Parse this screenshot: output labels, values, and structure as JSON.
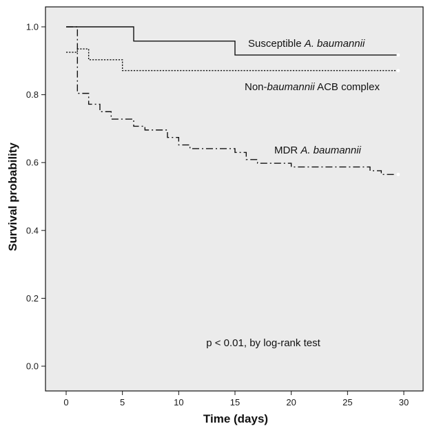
{
  "chart_data": {
    "type": "line",
    "step": true,
    "xlabel": "Time (days)",
    "ylabel": "Survival probability",
    "xlim": [
      0,
      30
    ],
    "ylim": [
      0,
      1
    ],
    "xticks": [
      0,
      5,
      10,
      15,
      20,
      25,
      30
    ],
    "yticks": [
      0.0,
      0.2,
      0.4,
      0.6,
      0.8,
      1.0
    ],
    "xtick_labels": [
      "0",
      "5",
      "10",
      "15",
      "20",
      "25",
      "30"
    ],
    "ytick_labels": [
      "0.0",
      "0.2",
      "0.4",
      "0.6",
      "0.8",
      "1.0"
    ],
    "grid": false,
    "background": "#ebebeb",
    "annotation": "p < 0.01, by log-rank test",
    "series": [
      {
        "label_parts": [
          {
            "text": "Susceptible ",
            "italic": false
          },
          {
            "text": "A. baumannii",
            "italic": true
          }
        ],
        "style": "solid",
        "color": "#111111",
        "x": [
          0,
          6,
          15,
          29.5
        ],
        "y": [
          1.0,
          0.958,
          0.917,
          0.917
        ]
      },
      {
        "label_parts": [
          {
            "text": "Non-",
            "italic": false
          },
          {
            "text": "baumannii",
            "italic": true
          },
          {
            "text": " ACB complex",
            "italic": false
          }
        ],
        "style": "dotted",
        "color": "#111111",
        "x": [
          0,
          1,
          2,
          5,
          29.5
        ],
        "y": [
          0.925,
          0.935,
          0.903,
          0.871,
          0.871
        ]
      },
      {
        "label_parts": [
          {
            "text": "MDR ",
            "italic": false
          },
          {
            "text": "A. baumannii",
            "italic": true
          }
        ],
        "style": "dashdot",
        "color": "#111111",
        "x": [
          0,
          1,
          2,
          3,
          4,
          6,
          7,
          9,
          10,
          11,
          15,
          16,
          17,
          20,
          27,
          28,
          29.5
        ],
        "y": [
          1.0,
          0.804,
          0.772,
          0.75,
          0.728,
          0.707,
          0.696,
          0.674,
          0.652,
          0.641,
          0.63,
          0.609,
          0.598,
          0.587,
          0.576,
          0.565,
          0.565
        ]
      }
    ]
  }
}
